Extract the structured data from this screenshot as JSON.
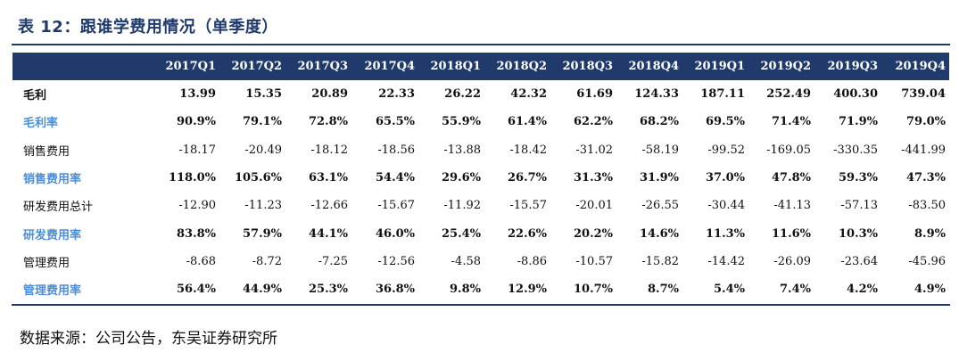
{
  "title": "表 12：跟谁学费用情况（单季度）",
  "columns": [
    "2017Q1",
    "2017Q2",
    "2017Q3",
    "2017Q4",
    "2018Q1",
    "2018Q2",
    "2018Q3",
    "2018Q4",
    "2019Q1",
    "2019Q2",
    "2019Q3",
    "2019Q4"
  ],
  "rows": [
    {
      "label": "毛利",
      "style": "bold",
      "values": [
        "13.99",
        "15.35",
        "20.89",
        "22.33",
        "26.22",
        "42.32",
        "61.69",
        "124.33",
        "187.11",
        "252.49",
        "400.30",
        "739.04"
      ]
    },
    {
      "label": "毛利率",
      "style": "rate",
      "values": [
        "90.9%",
        "79.1%",
        "72.8%",
        "65.5%",
        "55.9%",
        "61.4%",
        "62.2%",
        "68.2%",
        "69.5%",
        "71.4%",
        "71.9%",
        "79.0%"
      ]
    },
    {
      "label": "销售费用",
      "style": "normal",
      "values": [
        "-18.17",
        "-20.49",
        "-18.12",
        "-18.56",
        "-13.88",
        "-18.42",
        "-31.02",
        "-58.19",
        "-99.52",
        "-169.05",
        "-330.35",
        "-441.99"
      ]
    },
    {
      "label": "销售费用率",
      "style": "rate",
      "values": [
        "118.0%",
        "105.6%",
        "63.1%",
        "54.4%",
        "29.6%",
        "26.7%",
        "31.3%",
        "31.9%",
        "37.0%",
        "47.8%",
        "59.3%",
        "47.3%"
      ]
    },
    {
      "label": "研发费用总计",
      "style": "normal",
      "values": [
        "-12.90",
        "-11.23",
        "-12.66",
        "-15.67",
        "-11.92",
        "-15.57",
        "-20.01",
        "-26.55",
        "-30.44",
        "-41.13",
        "-57.13",
        "-83.50"
      ]
    },
    {
      "label": "研发费用率",
      "style": "rate",
      "values": [
        "83.8%",
        "57.9%",
        "44.1%",
        "46.0%",
        "25.4%",
        "22.6%",
        "20.2%",
        "14.6%",
        "11.3%",
        "11.6%",
        "10.3%",
        "8.9%"
      ]
    },
    {
      "label": "管理费用",
      "style": "normal",
      "values": [
        "-8.68",
        "-8.72",
        "-7.25",
        "-12.56",
        "-4.58",
        "-8.86",
        "-10.57",
        "-15.82",
        "-14.42",
        "-26.09",
        "-23.64",
        "-45.96"
      ]
    },
    {
      "label": "管理费用率",
      "style": "rate",
      "values": [
        "56.4%",
        "44.9%",
        "25.3%",
        "36.8%",
        "9.8%",
        "12.9%",
        "10.7%",
        "8.7%",
        "5.4%",
        "7.4%",
        "4.2%",
        "4.9%"
      ]
    }
  ],
  "source": "数据来源：公司公告，东吴证券研究所",
  "colors": {
    "header_bg": "#1f3a6b",
    "rate_text": "#4f8ed6"
  }
}
